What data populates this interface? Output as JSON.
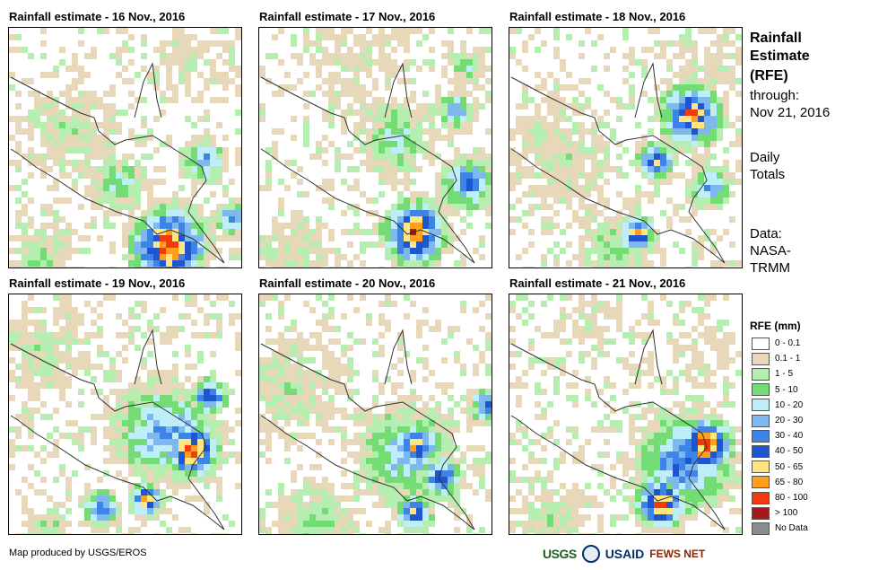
{
  "panels": [
    {
      "title": "Rainfall estimate - 16 Nov., 2016"
    },
    {
      "title": "Rainfall estimate - 17 Nov., 2016"
    },
    {
      "title": "Rainfall estimate - 18 Nov., 2016"
    },
    {
      "title": "Rainfall estimate - 19 Nov., 2016"
    },
    {
      "title": "Rainfall estimate - 20 Nov., 2016"
    },
    {
      "title": "Rainfall estimate - 21 Nov., 2016"
    }
  ],
  "sidebar": {
    "title_line1": "Rainfall",
    "title_line2": "Estimate",
    "title_line3": "(RFE)",
    "through_label": "through:",
    "through_date": "Nov 21, 2016",
    "daily_line1": "Daily",
    "daily_line2": "Totals",
    "data_line1": "Data:",
    "data_line2": "NASA-",
    "data_line3": "TRMM"
  },
  "legend": {
    "title": "RFE (mm)",
    "items": [
      {
        "label": "0 - 0.1",
        "color": "#ffffff"
      },
      {
        "label": "0.1 - 1",
        "color": "#e6d8b8"
      },
      {
        "label": "1 - 5",
        "color": "#b6edb0"
      },
      {
        "label": "5 - 10",
        "color": "#74dc74"
      },
      {
        "label": "10 - 20",
        "color": "#bdeef9"
      },
      {
        "label": "20 - 30",
        "color": "#7fb8ef"
      },
      {
        "label": "30 - 40",
        "color": "#3e84e6"
      },
      {
        "label": "40 - 50",
        "color": "#1e56cf"
      },
      {
        "label": "50 - 65",
        "color": "#ffe680"
      },
      {
        "label": "65 - 80",
        "color": "#ff9f1c"
      },
      {
        "label": "80 - 100",
        "color": "#f23a0c"
      },
      {
        "label": "> 100",
        "color": "#a41a1a"
      },
      {
        "label": "No Data",
        "color": "#8c8c8c"
      }
    ]
  },
  "footer": {
    "credit": "Map produced by USGS/EROS"
  },
  "logos": {
    "usgs": "USGS",
    "usaid": "USAID",
    "fewsnet": "FEWS NET"
  }
}
